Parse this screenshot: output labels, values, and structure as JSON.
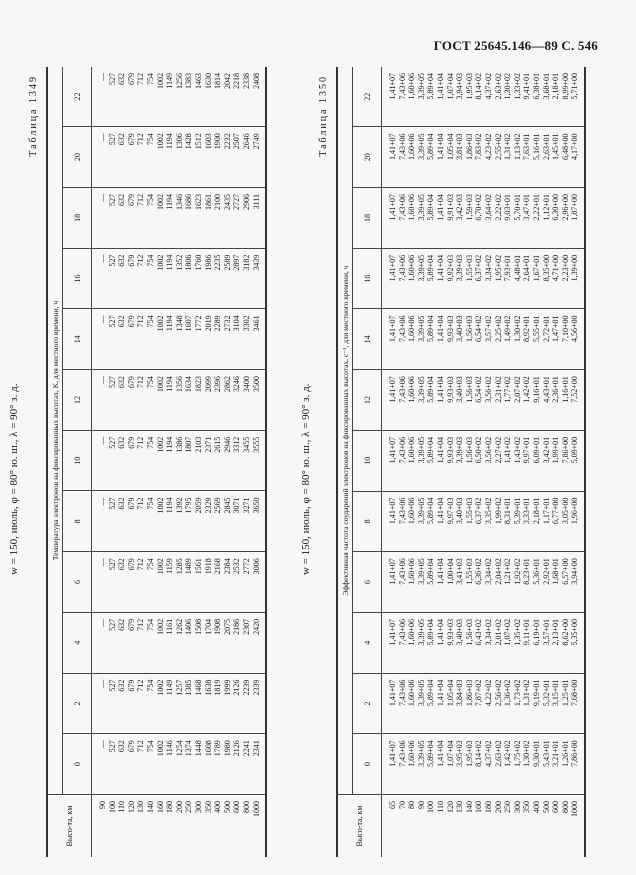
{
  "page_header": "ГОСТ 25645.146—89 С. 546",
  "table1": {
    "label": "Таблица 1349",
    "caption": "w = 150, июль, φ = 80° ю. ш., λ = 90° з. д.",
    "super_header": "Температура электронов на фиксированных высотах, K, для местного времени, ч",
    "row_header": "Высо-та, км",
    "columns": [
      "0",
      "2",
      "4",
      "6",
      "8",
      "10",
      "12",
      "14",
      "16",
      "18",
      "20",
      "22"
    ],
    "heights": [
      "90",
      "100",
      "110",
      "120",
      "130",
      "140",
      "160",
      "180",
      "200",
      "250",
      "300",
      "350",
      "400",
      "500",
      "600",
      "800",
      "1000"
    ],
    "values": [
      [
        "—",
        "527",
        "632",
        "679",
        "712",
        "754",
        "1002",
        "1146",
        "1254",
        "1374",
        "1448",
        "1608",
        "1789",
        "1980",
        "2126",
        "2241",
        "2341"
      ],
      [
        "—",
        "527",
        "632",
        "679",
        "712",
        "754",
        "1002",
        "1149",
        "1257",
        "1385",
        "1468",
        "1638",
        "1819",
        "1999",
        "2126",
        "2239",
        "2339"
      ],
      [
        "—",
        "527",
        "632",
        "679",
        "712",
        "754",
        "1002",
        "1161",
        "1262",
        "1406",
        "1508",
        "1704",
        "1908",
        "2075",
        "2186",
        "2307",
        "2420"
      ],
      [
        "—",
        "527",
        "632",
        "679",
        "712",
        "754",
        "1002",
        "1159",
        "1285",
        "1489",
        "1561",
        "1918",
        "2168",
        "2384",
        "2532",
        "2772",
        "3006"
      ],
      [
        "—",
        "527",
        "632",
        "679",
        "712",
        "754",
        "1002",
        "1194",
        "1392",
        "1795",
        "2059",
        "2329",
        "2569",
        "2845",
        "3071",
        "3271",
        "3650"
      ],
      [
        "—",
        "527",
        "632",
        "679",
        "712",
        "754",
        "1002",
        "1194",
        "1386",
        "1807",
        "2103",
        "2371",
        "2615",
        "2946",
        "3312",
        "3455",
        "3555"
      ],
      [
        "—",
        "527",
        "632",
        "679",
        "712",
        "754",
        "1002",
        "1194",
        "1356",
        "1634",
        "1823",
        "2099",
        "2396",
        "2862",
        "3246",
        "3400",
        "3500"
      ],
      [
        "—",
        "527",
        "632",
        "679",
        "712",
        "754",
        "1002",
        "1194",
        "1348",
        "1607",
        "1772",
        "2019",
        "2289",
        "2732",
        "3104",
        "3302",
        "3461"
      ],
      [
        "—",
        "527",
        "632",
        "679",
        "712",
        "754",
        "1002",
        "1194",
        "1352",
        "1806",
        "1760",
        "1986",
        "2235",
        "2589",
        "2897",
        "3182",
        "3439"
      ],
      [
        "—",
        "527",
        "632",
        "679",
        "712",
        "754",
        "1002",
        "1194",
        "1346",
        "1686",
        "1623",
        "1861",
        "2100",
        "2435",
        "2727",
        "2906",
        "3111"
      ],
      [
        "—",
        "527",
        "632",
        "679",
        "712",
        "754",
        "1002",
        "1194",
        "1306",
        "1428",
        "1512",
        "1603",
        "1900",
        "2232",
        "2507",
        "2646",
        "2749"
      ],
      [
        "—",
        "527",
        "632",
        "679",
        "712",
        "754",
        "1002",
        "1149",
        "1256",
        "1383",
        "1463",
        "1630",
        "1814",
        "2042",
        "2218",
        "2338",
        "2408"
      ]
    ]
  },
  "table2": {
    "label": "Таблица 1350",
    "caption": "w = 150, июль, φ = 80° ю. ш., λ = 90° з. д.",
    "super_header": "Эффективная частота соударений электронов на фиксированных высотах, с⁻¹, для местного времени, ч",
    "row_header": "Высо-та, км",
    "columns": [
      "0",
      "2",
      "4",
      "6",
      "8",
      "10",
      "12",
      "14",
      "16",
      "18",
      "20",
      "22"
    ],
    "heights": [
      "65",
      "70",
      "80",
      "90",
      "100",
      "110",
      "120",
      "130",
      "140",
      "160",
      "180",
      "200",
      "250",
      "300",
      "350",
      "400",
      "500",
      "600",
      "800",
      "1000"
    ],
    "values": [
      [
        "1,41+07",
        "7,43+06",
        "1,60+06",
        "3,39+05",
        "5,89+04",
        "1,41+04",
        "1,07+04",
        "3,95+03",
        "1,95+03",
        "8,14+02",
        "4,37+02",
        "2,63+02",
        "1,42+02",
        "1,75+02",
        "1,30+02",
        "9,30+01",
        "5,43+01",
        "3,21+01",
        "1,26+01",
        "7,86+00"
      ],
      [
        "1,41+07",
        "7,43+06",
        "1,60+06",
        "3,39+05",
        "5,89+04",
        "1,41+04",
        "1,05+04",
        "3,84+03",
        "1,86+03",
        "7,87+02",
        "4,22+02",
        "2,56+02",
        "1,36+02",
        "1,73+02",
        "1,31+02",
        "9,19+01",
        "5,32+01",
        "3,15+01",
        "1,25+01",
        "7,68+00"
      ],
      [
        "1,41+07",
        "7,43+06",
        "1,60+06",
        "3,39+05",
        "5,89+04",
        "1,41+04",
        "9,93+03",
        "3,40+03",
        "1,56+03",
        "6,43+02",
        "3,34+02",
        "2,01+02",
        "1,07+02",
        "1,35+02",
        "9,11+01",
        "6,19+01",
        "3,57+01",
        "2,13+01",
        "8,62+00",
        "5,35+00"
      ],
      [
        "1,41+07",
        "7,43+06",
        "1,60+06",
        "3,39+05",
        "5,89+04",
        "1,41+04",
        "1,00+04",
        "3,41+03",
        "1,55+03",
        "6,36+02",
        "3,34+02",
        "2,04+02",
        "1,21+02",
        "1,92+02",
        "8,23+01",
        "5,36+01",
        "2,92+01",
        "1,68+01",
        "6,57+00",
        "3,94+00"
      ],
      [
        "1,41+07",
        "7,43+06",
        "1,60+06",
        "3,39+05",
        "5,89+04",
        "1,41+04",
        "9,97+03",
        "3,40+03",
        "1,55+03",
        "6,37+02",
        "3,35+02",
        "1,99+02",
        "8,31+01",
        "5,39+01",
        "3,33+01",
        "2,18+01",
        "1,17+01",
        "6,77+00",
        "3,05+00",
        "1,96+00"
      ],
      [
        "1,41+07",
        "7,43+06",
        "1,60+06",
        "3,39+05",
        "5,89+04",
        "1,41+04",
        "9,93+03",
        "3,39+03",
        "1,56+03",
        "6,50+02",
        "3,56+02",
        "2,27+02",
        "1,41+02",
        "1,43+02",
        "9,97+01",
        "6,09+01",
        "3,42+01",
        "1,99+01",
        "7,86+00",
        "5,09+00"
      ],
      [
        "1,41+07",
        "7,43+06",
        "1,60+06",
        "3,39+05",
        "5,89+04",
        "1,41+04",
        "9,93+03",
        "3,40+03",
        "1,56+03",
        "6,54+02",
        "3,56+02",
        "2,31+02",
        "1,77+02",
        "2,07+02",
        "1,42+02",
        "9,16+01",
        "4,43+01",
        "2,36+01",
        "1,16+01",
        "7,52+00"
      ],
      [
        "1,41+07",
        "7,43+06",
        "1,60+06",
        "3,39+05",
        "5,89+04",
        "1,41+04",
        "9,93+03",
        "3,40+03",
        "1,56+03",
        "6,54+02",
        "3,57+02",
        "2,25+02",
        "1,49+02",
        "1,30+02",
        "8,92+01",
        "5,55+01",
        "2,72+01",
        "1,47+01",
        "7,10+00",
        "4,56+00"
      ],
      [
        "1,41+07",
        "7,43+06",
        "1,60+06",
        "3,39+05",
        "5,89+04",
        "1,41+04",
        "9,92+03",
        "3,39+03",
        "1,55+03",
        "6,37+02",
        "3,34+02",
        "1,95+02",
        "7,93+01",
        "4,48+01",
        "2,64+01",
        "1,67+01",
        "8,35+00",
        "4,71+00",
        "2,23+00",
        "1,39+00"
      ],
      [
        "1,41+07",
        "7,43+06",
        "1,60+06",
        "3,39+05",
        "5,89+04",
        "1,41+04",
        "9,91+03",
        "3,42+03",
        "1,59+03",
        "6,70+02",
        "3,64+02",
        "2,22+02",
        "9,03+01",
        "5,70+01",
        "3,47+01",
        "2,22+01",
        "1,12+01",
        "6,30+00",
        "2,96+00",
        "1,87+00"
      ],
      [
        "1,41+07",
        "7,43+06",
        "1,60+06",
        "3,39+05",
        "5,89+04",
        "1,41+04",
        "1,05+04",
        "3,81+03",
        "1,86+03",
        "7,83+02",
        "4,23+02",
        "2,55+02",
        "1,31+02",
        "1,13+02",
        "7,63+01",
        "5,16+01",
        "2,63+01",
        "1,45+01",
        "6,48+00",
        "4,17+00"
      ],
      [
        "1,41+07",
        "7,43+06",
        "1,60+06",
        "3,39+05",
        "5,89+04",
        "1,41+04",
        "1,07+04",
        "3,94+03",
        "1,95+03",
        "8,14+02",
        "4,37+02",
        "2,63+02",
        "1,30+02",
        "1,33+02",
        "9,41+01",
        "6,38+01",
        "3,68+01",
        "2,18+01",
        "8,99+00",
        "5,71+00"
      ]
    ]
  }
}
